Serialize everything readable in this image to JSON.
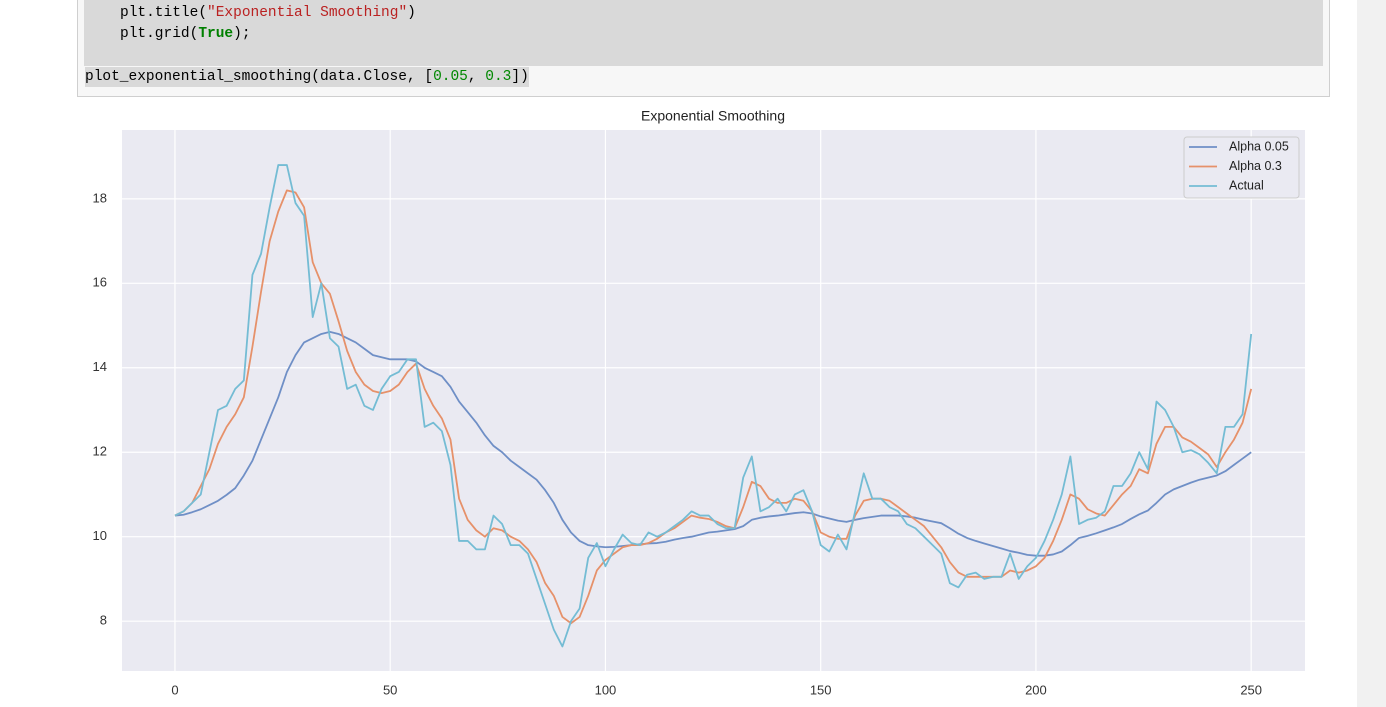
{
  "code": {
    "lines": [
      [
        "plt.title(",
        "\"Exponential Smoothing\"",
        ")"
      ],
      [
        "plt.grid(",
        "True",
        ");"
      ],
      [
        "plot_exponential_smoothing(data.Close, [",
        "0.05",
        ", ",
        "0.3",
        "])"
      ]
    ]
  },
  "chart_data": {
    "type": "line",
    "title": "Exponential Smoothing",
    "x": [
      0,
      2,
      4,
      6,
      8,
      10,
      12,
      14,
      16,
      18,
      20,
      22,
      24,
      26,
      28,
      30,
      32,
      34,
      36,
      38,
      40,
      42,
      44,
      46,
      48,
      50,
      52,
      54,
      56,
      58,
      60,
      62,
      64,
      66,
      68,
      70,
      72,
      74,
      76,
      78,
      80,
      82,
      84,
      86,
      88,
      90,
      92,
      94,
      96,
      98,
      100,
      102,
      104,
      106,
      108,
      110,
      112,
      114,
      116,
      118,
      120,
      122,
      124,
      126,
      128,
      130,
      132,
      134,
      136,
      138,
      140,
      142,
      144,
      146,
      148,
      150,
      152,
      154,
      156,
      158,
      160,
      162,
      164,
      166,
      168,
      170,
      172,
      174,
      176,
      178,
      180,
      182,
      184,
      186,
      188,
      190,
      192,
      194,
      196,
      198,
      200,
      202,
      204,
      206,
      208,
      210,
      212,
      214,
      216,
      218,
      220,
      222,
      224,
      226,
      228,
      230,
      232,
      234,
      236,
      238,
      240,
      242,
      244,
      246,
      248,
      250
    ],
    "series": [
      {
        "name": "Alpha 0.05",
        "color": "#6f8fc6",
        "values": [
          10.5,
          10.52,
          10.58,
          10.65,
          10.75,
          10.85,
          10.99,
          11.15,
          11.45,
          11.8,
          12.3,
          12.8,
          13.3,
          13.9,
          14.3,
          14.6,
          14.7,
          14.8,
          14.85,
          14.8,
          14.7,
          14.6,
          14.45,
          14.3,
          14.25,
          14.2,
          14.2,
          14.2,
          14.15,
          14.0,
          13.9,
          13.8,
          13.55,
          13.2,
          12.95,
          12.7,
          12.4,
          12.15,
          12.0,
          11.8,
          11.65,
          11.5,
          11.35,
          11.1,
          10.8,
          10.4,
          10.1,
          9.9,
          9.8,
          9.77,
          9.75,
          9.76,
          9.78,
          9.8,
          9.82,
          9.84,
          9.85,
          9.88,
          9.93,
          9.97,
          10.0,
          10.05,
          10.1,
          10.12,
          10.15,
          10.18,
          10.25,
          10.4,
          10.45,
          10.48,
          10.5,
          10.53,
          10.56,
          10.58,
          10.55,
          10.48,
          10.43,
          10.38,
          10.35,
          10.4,
          10.44,
          10.47,
          10.5,
          10.5,
          10.5,
          10.48,
          10.45,
          10.4,
          10.36,
          10.32,
          10.2,
          10.07,
          9.97,
          9.9,
          9.84,
          9.78,
          9.72,
          9.66,
          9.62,
          9.57,
          9.55,
          9.55,
          9.58,
          9.65,
          9.8,
          9.97,
          10.02,
          10.08,
          10.15,
          10.22,
          10.3,
          10.42,
          10.53,
          10.62,
          10.8,
          11.0,
          11.12,
          11.2,
          11.28,
          11.35,
          11.4,
          11.45,
          11.55,
          11.7,
          11.85,
          12.0
        ]
      },
      {
        "name": "Alpha 0.3",
        "color": "#e6916a",
        "values": [
          10.5,
          10.6,
          10.8,
          11.2,
          11.6,
          12.2,
          12.6,
          12.9,
          13.3,
          14.5,
          15.8,
          17.0,
          17.7,
          18.2,
          18.15,
          17.8,
          16.5,
          16.0,
          15.75,
          15.1,
          14.4,
          13.9,
          13.6,
          13.45,
          13.4,
          13.45,
          13.6,
          13.9,
          14.1,
          13.5,
          13.1,
          12.8,
          12.3,
          10.9,
          10.4,
          10.15,
          10.0,
          10.2,
          10.15,
          10.0,
          9.9,
          9.7,
          9.4,
          8.9,
          8.6,
          8.1,
          7.95,
          8.1,
          8.6,
          9.2,
          9.45,
          9.6,
          9.75,
          9.8,
          9.8,
          9.85,
          9.95,
          10.1,
          10.2,
          10.35,
          10.5,
          10.45,
          10.42,
          10.35,
          10.25,
          10.2,
          10.7,
          11.3,
          11.2,
          10.9,
          10.8,
          10.8,
          10.9,
          10.85,
          10.6,
          10.1,
          10.0,
          9.95,
          9.95,
          10.5,
          10.85,
          10.9,
          10.9,
          10.85,
          10.7,
          10.55,
          10.4,
          10.25,
          10.0,
          9.75,
          9.4,
          9.15,
          9.05,
          9.05,
          9.05,
          9.05,
          9.05,
          9.2,
          9.15,
          9.2,
          9.3,
          9.5,
          9.9,
          10.4,
          11.0,
          10.9,
          10.65,
          10.55,
          10.5,
          10.75,
          11.0,
          11.2,
          11.6,
          11.5,
          12.2,
          12.6,
          12.6,
          12.35,
          12.25,
          12.1,
          11.95,
          11.65,
          12.0,
          12.3,
          12.7,
          13.5
        ]
      },
      {
        "name": "Actual",
        "color": "#74bcd4",
        "values": [
          10.5,
          10.6,
          10.8,
          11.0,
          12.0,
          13.0,
          13.1,
          13.5,
          13.7,
          16.2,
          16.7,
          17.8,
          18.8,
          18.8,
          17.9,
          17.6,
          15.2,
          16.0,
          14.7,
          14.5,
          13.5,
          13.6,
          13.1,
          13.0,
          13.5,
          13.8,
          13.9,
          14.2,
          14.2,
          12.6,
          12.7,
          12.5,
          11.7,
          9.9,
          9.9,
          9.7,
          9.7,
          10.5,
          10.3,
          9.8,
          9.8,
          9.6,
          9.0,
          8.4,
          7.8,
          7.4,
          8.0,
          8.3,
          9.5,
          9.85,
          9.3,
          9.7,
          10.05,
          9.85,
          9.8,
          10.1,
          10.0,
          10.1,
          10.25,
          10.4,
          10.6,
          10.5,
          10.5,
          10.3,
          10.2,
          10.2,
          11.4,
          11.9,
          10.6,
          10.7,
          10.9,
          10.6,
          11.0,
          11.1,
          10.6,
          9.8,
          9.65,
          10.05,
          9.7,
          10.6,
          11.5,
          10.9,
          10.9,
          10.7,
          10.6,
          10.3,
          10.2,
          10.0,
          9.8,
          9.6,
          8.9,
          8.8,
          9.1,
          9.15,
          9.0,
          9.05,
          9.05,
          9.6,
          9.0,
          9.3,
          9.5,
          9.9,
          10.4,
          11.0,
          11.9,
          10.3,
          10.4,
          10.45,
          10.6,
          11.2,
          11.2,
          11.5,
          12.0,
          11.6,
          13.2,
          13.0,
          12.6,
          12.0,
          12.05,
          11.95,
          11.75,
          11.5,
          12.6,
          12.6,
          12.9,
          14.8
        ]
      }
    ],
    "xlim": [
      -12.3,
      262.5
    ],
    "ylim": [
      6.82,
      19.63
    ],
    "xticks": [
      0,
      50,
      100,
      150,
      200,
      250
    ],
    "yticks": [
      8,
      10,
      12,
      14,
      16,
      18
    ],
    "grid": true,
    "legend": "upper right"
  }
}
